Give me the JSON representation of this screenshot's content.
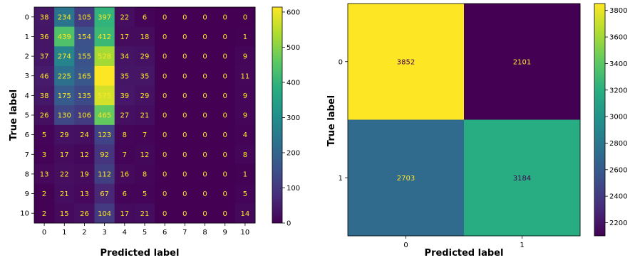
{
  "chart_data": [
    {
      "type": "heatmap",
      "xlabel": "Predicted label",
      "ylabel": "True label",
      "x_ticks": [
        "0",
        "1",
        "2",
        "3",
        "4",
        "5",
        "6",
        "7",
        "8",
        "9",
        "10"
      ],
      "y_ticks": [
        "0",
        "1",
        "2",
        "3",
        "4",
        "5",
        "6",
        "7",
        "8",
        "9",
        "10"
      ],
      "values": [
        [
          38,
          234,
          105,
          397,
          22,
          6,
          0,
          0,
          0,
          0,
          0
        ],
        [
          36,
          439,
          154,
          412,
          17,
          18,
          0,
          0,
          0,
          0,
          1
        ],
        [
          37,
          274,
          155,
          528,
          34,
          29,
          0,
          0,
          0,
          0,
          9
        ],
        [
          46,
          225,
          165,
          614,
          35,
          35,
          0,
          0,
          0,
          0,
          11
        ],
        [
          38,
          175,
          135,
          575,
          39,
          29,
          0,
          0,
          0,
          0,
          9
        ],
        [
          26,
          130,
          106,
          465,
          27,
          21,
          0,
          0,
          0,
          0,
          9
        ],
        [
          5,
          29,
          24,
          123,
          8,
          7,
          0,
          0,
          0,
          0,
          4
        ],
        [
          3,
          17,
          12,
          92,
          7,
          12,
          0,
          0,
          0,
          0,
          8
        ],
        [
          13,
          22,
          19,
          112,
          16,
          8,
          0,
          0,
          0,
          0,
          1
        ],
        [
          2,
          21,
          13,
          67,
          6,
          5,
          0,
          0,
          0,
          0,
          5
        ],
        [
          2,
          15,
          26,
          104,
          17,
          21,
          0,
          0,
          0,
          0,
          14
        ]
      ],
      "colormap": "viridis",
      "color_range": [
        0,
        614
      ],
      "colorbar_ticks": [
        "0",
        "100",
        "200",
        "300",
        "400",
        "500",
        "600"
      ],
      "text_color": "#fde725"
    },
    {
      "type": "heatmap",
      "xlabel": "Predicted label",
      "ylabel": "True label",
      "x_ticks": [
        "0",
        "1"
      ],
      "y_ticks": [
        "0",
        "1"
      ],
      "values": [
        [
          3852,
          2101
        ],
        [
          2703,
          3184
        ]
      ],
      "colormap": "viridis",
      "color_range": [
        2101,
        3852
      ],
      "colorbar_ticks": [
        "2200",
        "2400",
        "2600",
        "2800",
        "3000",
        "3200",
        "3400",
        "3600",
        "3800"
      ],
      "text_color_dark": "#440154",
      "text_color_light": "#fde725"
    }
  ]
}
